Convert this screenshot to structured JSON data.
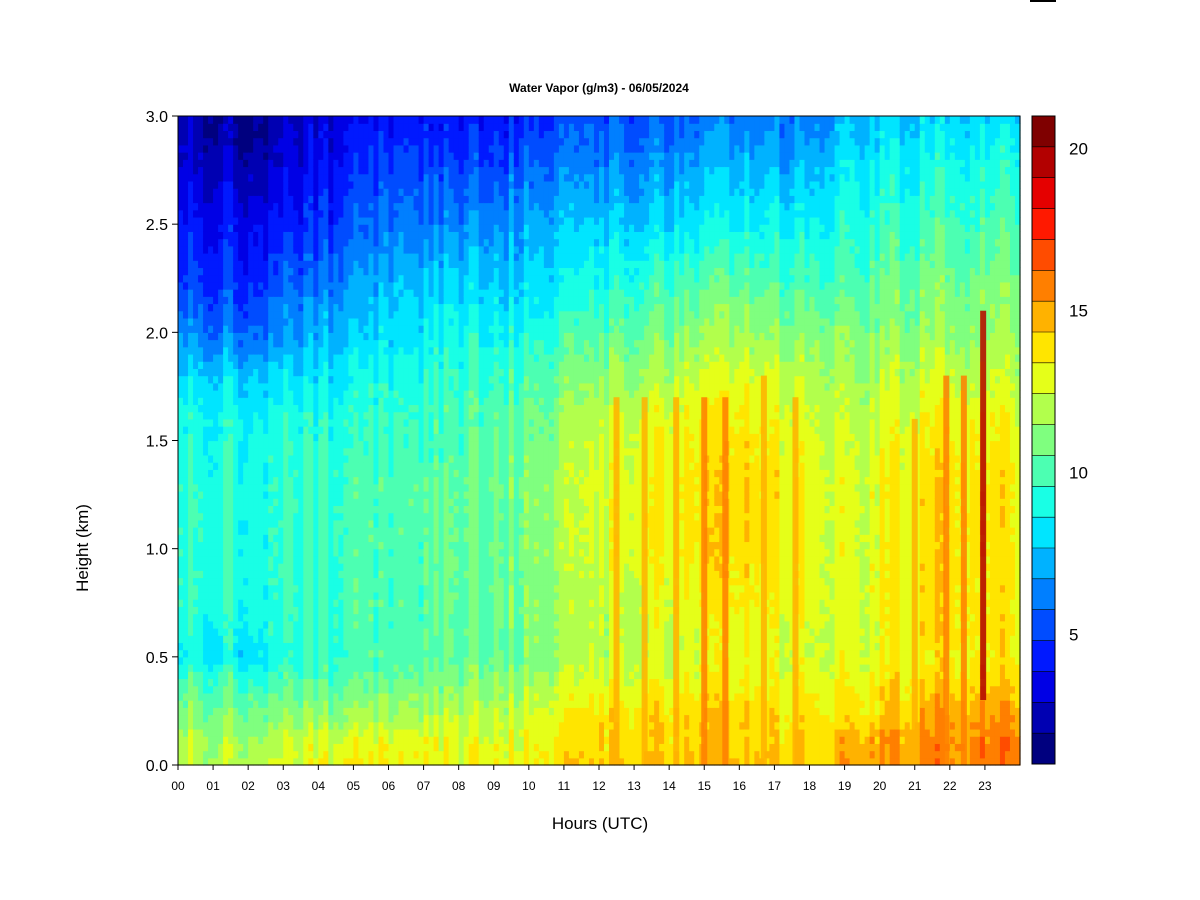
{
  "chart_data": {
    "type": "heatmap",
    "title": "Water Vapor (g/m3) - 06/05/2024",
    "xlabel": "Hours (UTC)",
    "ylabel": "Height (km)",
    "x_range": [
      0,
      24
    ],
    "y_range": [
      0.0,
      3.0
    ],
    "x_ticks": [
      "00",
      "01",
      "02",
      "03",
      "04",
      "05",
      "06",
      "07",
      "08",
      "09",
      "10",
      "11",
      "12",
      "13",
      "14",
      "15",
      "16",
      "17",
      "18",
      "19",
      "20",
      "21",
      "22",
      "23"
    ],
    "y_ticks": [
      "0.0",
      "0.5",
      "1.0",
      "1.5",
      "2.0",
      "2.5",
      "3.0"
    ],
    "colorbar": {
      "range": [
        1,
        21
      ],
      "ticks": [
        "5",
        "10",
        "15",
        "20"
      ],
      "tick_values": [
        5,
        10,
        15,
        20
      ],
      "levels": [
        1,
        2,
        3,
        4,
        5,
        6,
        7,
        8,
        9,
        10,
        11,
        12,
        13,
        14,
        15,
        16,
        17,
        18,
        19,
        20,
        21
      ],
      "colors": [
        "#00007F",
        "#0000B2",
        "#0000E5",
        "#0019FF",
        "#004CFF",
        "#007FFF",
        "#00B2FF",
        "#00E5FF",
        "#19FFE5",
        "#4CFFB2",
        "#7FFF7F",
        "#B2FF4C",
        "#E5FF19",
        "#FFE500",
        "#FFB200",
        "#FF7F00",
        "#FF4C00",
        "#FF1900",
        "#E50000",
        "#B20000",
        "#7F0000"
      ]
    },
    "profile_heights_km": [
      0.0,
      0.1,
      0.25,
      0.4,
      0.5,
      0.6,
      0.8,
      1.0,
      1.3,
      1.6,
      1.8,
      2.0,
      2.2,
      2.5,
      2.8,
      3.0
    ],
    "profiles": [
      {
        "hour": 0,
        "values": [
          12,
          12,
          11,
          10,
          8.5,
          9,
          9.5,
          9.5,
          9.5,
          9,
          8,
          6.5,
          5,
          4,
          3,
          2.5
        ]
      },
      {
        "hour": 2,
        "values": [
          12,
          12,
          11,
          10,
          8.5,
          9,
          9.5,
          9.5,
          9.5,
          9,
          8,
          6,
          5,
          4,
          2.5,
          2
        ]
      },
      {
        "hour": 4,
        "values": [
          13,
          12.5,
          11,
          10,
          9.5,
          9.5,
          9.5,
          9.5,
          9.5,
          9,
          8,
          7,
          6,
          4.5,
          3.5,
          3
        ]
      },
      {
        "hour": 6,
        "values": [
          13.5,
          13,
          11.5,
          10.5,
          10,
          10,
          10,
          10,
          10,
          9.5,
          9,
          8,
          7.5,
          6,
          5,
          4
        ]
      },
      {
        "hour": 8,
        "values": [
          13,
          13,
          12,
          11,
          10.5,
          10.5,
          10.5,
          10.5,
          10.5,
          10,
          9.5,
          9,
          8,
          6.5,
          5,
          4
        ]
      },
      {
        "hour": 10,
        "values": [
          13.5,
          13,
          12.5,
          11.5,
          11,
          11,
          11,
          11,
          11,
          10.5,
          10,
          9,
          8,
          7,
          5.5,
          4.5
        ]
      },
      {
        "hour": 12,
        "values": [
          14,
          14,
          13.5,
          12.5,
          12,
          12,
          12,
          12.5,
          12.5,
          12,
          11,
          10,
          9,
          7.5,
          6,
          5
        ]
      },
      {
        "hour": 14,
        "values": [
          14.5,
          14,
          14,
          13,
          12.5,
          12.5,
          13,
          13.5,
          13.5,
          13,
          12,
          11,
          10,
          8,
          6.5,
          5.5
        ]
      },
      {
        "hour": 16,
        "values": [
          14.5,
          14,
          14,
          13,
          13,
          13,
          13.5,
          14,
          14,
          13.5,
          12.5,
          11.5,
          10.5,
          8.5,
          7,
          6
        ]
      },
      {
        "hour": 18,
        "values": [
          14,
          14,
          13.5,
          13,
          12.5,
          12.5,
          13,
          13,
          13,
          12.5,
          12,
          11,
          10,
          8.5,
          7,
          6
        ]
      },
      {
        "hour": 19,
        "values": [
          15,
          14.5,
          13.5,
          13,
          12.5,
          12.5,
          12.5,
          12.5,
          12.5,
          12,
          11.5,
          11,
          10,
          9,
          8,
          7
        ]
      },
      {
        "hour": 20,
        "values": [
          15,
          15,
          14,
          13.5,
          13,
          13,
          13,
          13,
          13,
          12.5,
          12,
          11,
          10.5,
          9.5,
          8.5,
          7.5
        ]
      },
      {
        "hour": 22,
        "values": [
          15.5,
          15.5,
          15,
          14,
          13.5,
          14,
          14,
          14,
          14,
          13.5,
          12.5,
          11.5,
          11,
          10,
          9,
          8
        ]
      },
      {
        "hour": 24,
        "values": [
          16,
          16,
          15,
          14,
          13.5,
          13.5,
          13.5,
          13.5,
          13.5,
          13,
          12,
          11.5,
          11,
          10,
          9,
          8
        ]
      }
    ],
    "moist_streaks": [
      {
        "hour": 12.5,
        "y0": 0.0,
        "y1": 1.7,
        "value": 14.5
      },
      {
        "hour": 13.3,
        "y0": 0.0,
        "y1": 1.7,
        "value": 14.5
      },
      {
        "hour": 14.2,
        "y0": 0.0,
        "y1": 1.7,
        "value": 14.5
      },
      {
        "hour": 15.0,
        "y0": 0.0,
        "y1": 1.7,
        "value": 15.5
      },
      {
        "hour": 15.6,
        "y0": 0.0,
        "y1": 1.7,
        "value": 15.5
      },
      {
        "hour": 16.7,
        "y0": 0.0,
        "y1": 1.8,
        "value": 15
      },
      {
        "hour": 17.6,
        "y0": 0.0,
        "y1": 1.7,
        "value": 15
      },
      {
        "hour": 21.0,
        "y0": 0.0,
        "y1": 1.6,
        "value": 15
      },
      {
        "hour": 21.9,
        "y0": 0.0,
        "y1": 1.8,
        "value": 16
      },
      {
        "hour": 22.4,
        "y0": 0.0,
        "y1": 1.8,
        "value": 16
      },
      {
        "hour": 22.95,
        "y0": 0.3,
        "y1": 2.1,
        "value": 20
      }
    ]
  }
}
